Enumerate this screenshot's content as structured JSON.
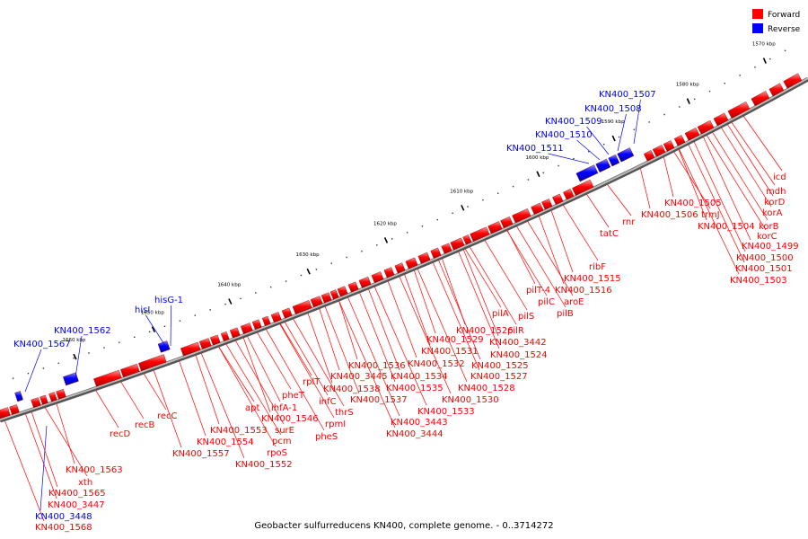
{
  "caption": "Geobacter sulfurreducens KN400, complete genome. - 0..3714272",
  "legend": [
    {
      "label": "Forward",
      "color": "#ff0000"
    },
    {
      "label": "Reverse",
      "color": "#0000ff"
    }
  ],
  "kbp_ticks": [
    "1570 kbp",
    "1580 kbp",
    "1590 kbp",
    "1600 kbp",
    "1610 kbp",
    "1620 kbp",
    "1630 kbp",
    "1640 kbp",
    "1650 kbp",
    "1660 kbp"
  ],
  "forward_labels": [
    "icd",
    "mdh",
    "korD",
    "korA",
    "korB",
    "korC",
    "KN400_1499",
    "KN400_1500",
    "KN400_1501",
    "KN400_1503",
    "KN400_1504",
    "trmJ",
    "KN400_1505",
    "KN400_1506",
    "rnr",
    "tatC",
    "ribF",
    "KN400_1515",
    "KN400_1516",
    "aroE",
    "pilB",
    "pilT-4",
    "pilC",
    "pilS",
    "pilR",
    "pilA",
    "KN400_1526",
    "KN400_3442",
    "KN400_1529",
    "KN400_1524",
    "KN400_1531",
    "KN400_1532",
    "KN400_1525",
    "KN400_1527",
    "KN400_1536",
    "KN400_1534",
    "KN400_1528",
    "KN400_3445",
    "KN400_1535",
    "KN400_1530",
    "rplT",
    "KN400_1538",
    "infC",
    "KN400_1537",
    "KN400_1533",
    "thrS",
    "rpmI",
    "KN400_3443",
    "pheS",
    "KN400_3444",
    "pheT",
    "ihfA-1",
    "apt",
    "KN400_1546",
    "surE",
    "KN400_1553",
    "pcm",
    "KN400_1554",
    "rpoS",
    "KN400_1557",
    "KN400_1552",
    "recC",
    "recB",
    "recD",
    "KN400_1563",
    "xth",
    "KN400_1565",
    "KN400_3447",
    "KN400_1568"
  ],
  "reverse_labels": [
    "KN400_1507",
    "KN400_1508",
    "KN400_1509",
    "KN400_1510",
    "KN400_1511",
    "hisG-1",
    "hisI",
    "KN400_1562",
    "KN400_1567",
    "KN400_3448"
  ]
}
